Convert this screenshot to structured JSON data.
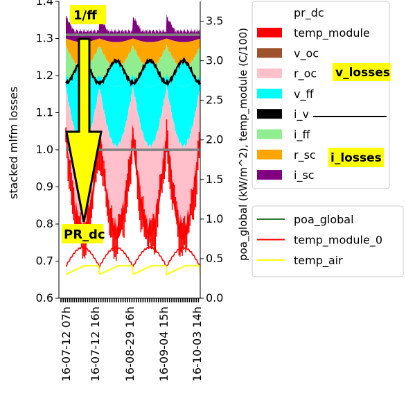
{
  "chart_data": [
    {
      "type": "area",
      "ylabel": "stacked mlfm losses",
      "ylim": [
        0.6,
        1.4
      ],
      "y_ticks": [
        "0.6",
        "0.7",
        "0.8",
        "0.9",
        "1.0",
        "1.1",
        "1.2",
        "1.3",
        "1.4"
      ],
      "y_tick_values": [
        0.6,
        0.7,
        0.8,
        0.9,
        1.0,
        1.1,
        1.2,
        1.3,
        1.4
      ],
      "x_tick_labels": [
        "16-07-12 07h",
        "16-07-12 16h",
        "16-08-29 16h",
        "16-09-04 15h",
        "16-10-03 14h"
      ],
      "reference_lines": [
        1.0,
        1.31
      ],
      "days": 4,
      "layer_colors": {
        "temp_module": "#ff0000",
        "v_oc": "#a0522d",
        "r_oc": "#ffc0cb",
        "v_ff": "#00ffff",
        "i_v": "#000000",
        "i_ff": "#90ee90",
        "r_sc": "#ffa500",
        "i_sc": "#800080"
      },
      "series_approx": [
        {
          "name": "temp_module",
          "min": 0.78,
          "max": 1.06
        },
        {
          "name": "r_oc",
          "min": 0.93,
          "max": 1.18
        },
        {
          "name": "v_ff",
          "min": 1.17,
          "max": 1.21
        },
        {
          "name": "i_v",
          "min": 1.17,
          "max": 1.26
        },
        {
          "name": "i_ff",
          "min": 1.19,
          "max": 1.29
        },
        {
          "name": "r_sc",
          "min": 1.27,
          "max": 1.31
        },
        {
          "name": "i_sc",
          "min": 1.29,
          "max": 1.38
        }
      ]
    },
    {
      "type": "line",
      "ylabel": "poa_global (kW/m^2), temp_module (C/100)",
      "ylim": [
        0.0,
        3.75
      ],
      "y_ticks": [
        "0.0",
        "0.5",
        "1.0",
        "1.5",
        "2.0",
        "2.5",
        "3.0",
        "3.5"
      ],
      "y_tick_values": [
        0.0,
        0.5,
        1.0,
        1.5,
        2.0,
        2.5,
        3.0,
        3.5
      ],
      "series": [
        {
          "name": "temp_module_0",
          "color": "#ff0000",
          "min": 0.38,
          "max": 0.66
        },
        {
          "name": "temp_air",
          "color": "#ffff00",
          "min": 0.28,
          "max": 0.42
        }
      ]
    }
  ],
  "legend1": {
    "title": "pr_dc",
    "items": [
      {
        "label": "temp_module",
        "color": "#ff0000",
        "kind": "patch"
      },
      {
        "label": "v_oc",
        "color": "#a0522d",
        "kind": "patch"
      },
      {
        "label": "r_oc",
        "color": "#ffc0cb",
        "kind": "patch"
      },
      {
        "label": "v_ff",
        "color": "#00ffff",
        "kind": "patch"
      },
      {
        "label": "i_v",
        "color": "#000000",
        "kind": "patch"
      },
      {
        "label": "i_ff",
        "color": "#90ee90",
        "kind": "patch"
      },
      {
        "label": "r_sc",
        "color": "#ffa500",
        "kind": "patch"
      },
      {
        "label": "i_sc",
        "color": "#800080",
        "kind": "patch"
      }
    ]
  },
  "legend2": {
    "items": [
      {
        "label": "poa_global",
        "color": "#2e7d32",
        "kind": "line"
      },
      {
        "label": "temp_module_0",
        "color": "#ff0000",
        "kind": "line"
      },
      {
        "label": "temp_air",
        "color": "#ffff00",
        "kind": "line"
      }
    ]
  },
  "annotations": {
    "ff_label": "1/ff",
    "pr_label": "PR_dc",
    "v_losses": "v_losses",
    "i_losses": "i_losses",
    "highlight_color": "#ffff00"
  }
}
